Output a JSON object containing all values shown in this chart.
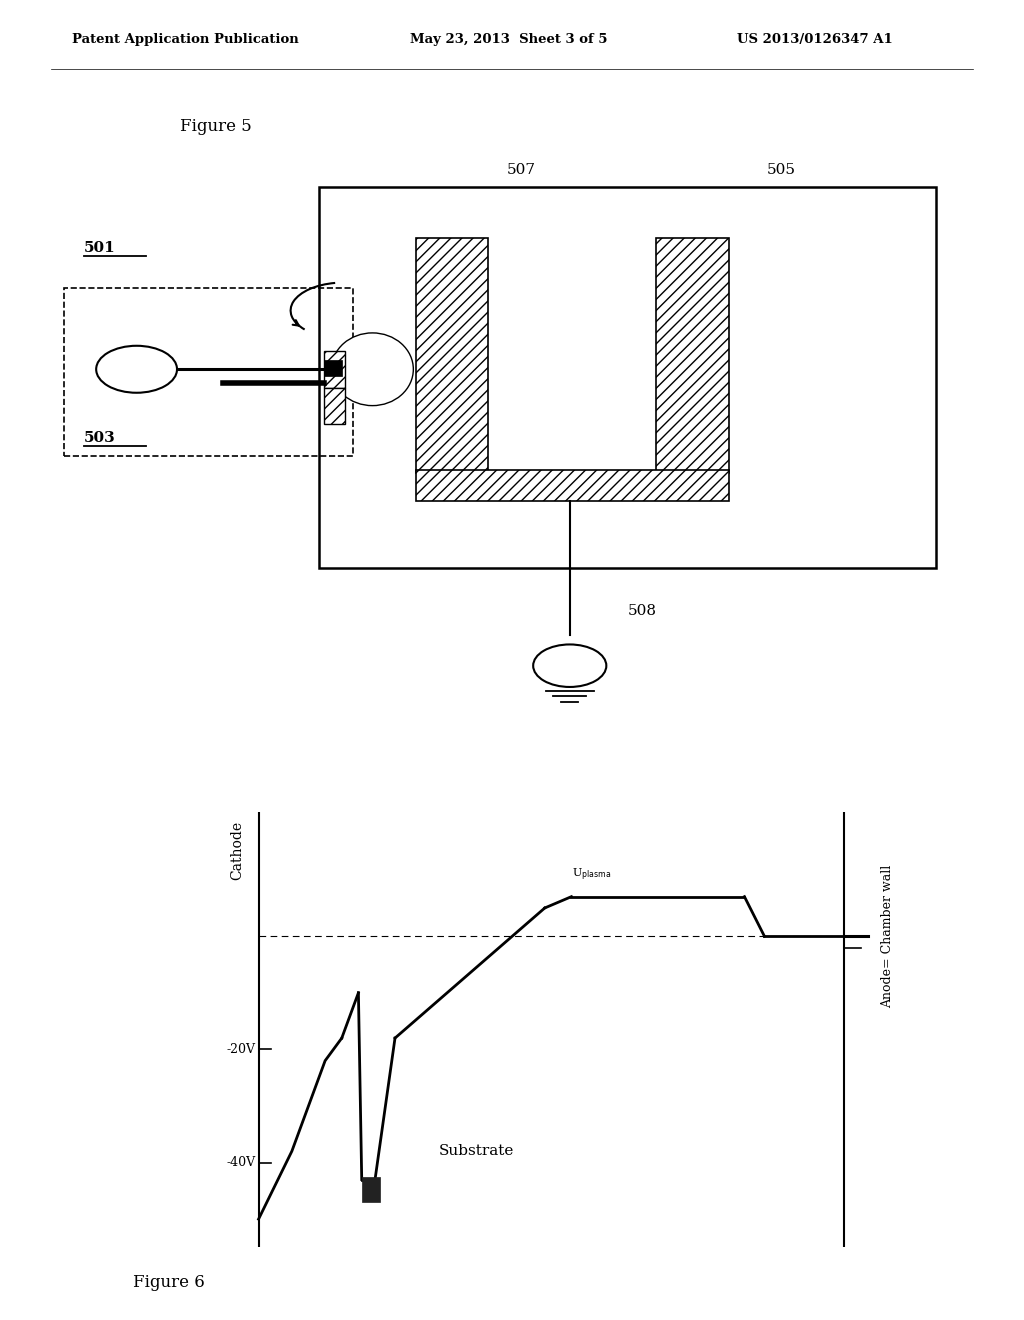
{
  "header_left": "Patent Application Publication",
  "header_center": "May 23, 2013  Sheet 3 of 5",
  "header_right": "US 2013/0126347 A1",
  "fig5_label": "Figure 5",
  "fig6_label": "Figure 6",
  "label_501": "501",
  "label_503": "503",
  "label_505": "505",
  "label_507": "507",
  "label_508": "508",
  "cathode_label": "Cathode",
  "anode_label": "Anode= Chamber wall",
  "substrate_label": "Substrate",
  "voltage_neg20": "-20V",
  "voltage_neg40": "-40V",
  "bg_color": "#ffffff",
  "line_color": "#000000"
}
